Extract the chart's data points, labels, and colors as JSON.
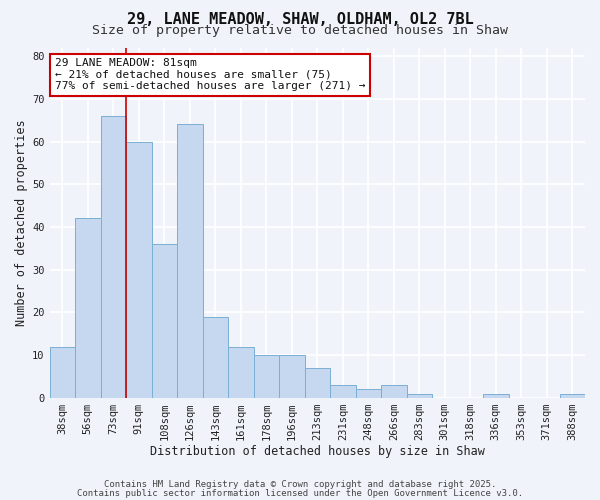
{
  "title1": "29, LANE MEADOW, SHAW, OLDHAM, OL2 7BL",
  "title2": "Size of property relative to detached houses in Shaw",
  "xlabel": "Distribution of detached houses by size in Shaw",
  "ylabel": "Number of detached properties",
  "categories": [
    "38sqm",
    "56sqm",
    "73sqm",
    "91sqm",
    "108sqm",
    "126sqm",
    "143sqm",
    "161sqm",
    "178sqm",
    "196sqm",
    "213sqm",
    "231sqm",
    "248sqm",
    "266sqm",
    "283sqm",
    "301sqm",
    "318sqm",
    "336sqm",
    "353sqm",
    "371sqm",
    "388sqm"
  ],
  "values": [
    12,
    42,
    66,
    60,
    36,
    64,
    19,
    12,
    10,
    10,
    7,
    3,
    2,
    3,
    1,
    0,
    0,
    1,
    0,
    0,
    1
  ],
  "bar_color": "#c5d8f0",
  "bar_edge_color": "#7aafd4",
  "vline_x": 2.5,
  "vline_color": "#cc0000",
  "annotation_text": "29 LANE MEADOW: 81sqm\n← 21% of detached houses are smaller (75)\n77% of semi-detached houses are larger (271) →",
  "annotation_box_color": "#ffffff",
  "annotation_box_edge": "#cc0000",
  "ylim": [
    0,
    82
  ],
  "yticks": [
    0,
    10,
    20,
    30,
    40,
    50,
    60,
    70,
    80
  ],
  "footer1": "Contains HM Land Registry data © Crown copyright and database right 2025.",
  "footer2": "Contains public sector information licensed under the Open Government Licence v3.0.",
  "bg_color": "#f0f4fa",
  "grid_color": "#ffffff",
  "title_fontsize": 11,
  "subtitle_fontsize": 9.5,
  "label_fontsize": 8.5,
  "tick_fontsize": 7.5,
  "annotation_fontsize": 8,
  "footer_fontsize": 6.5
}
